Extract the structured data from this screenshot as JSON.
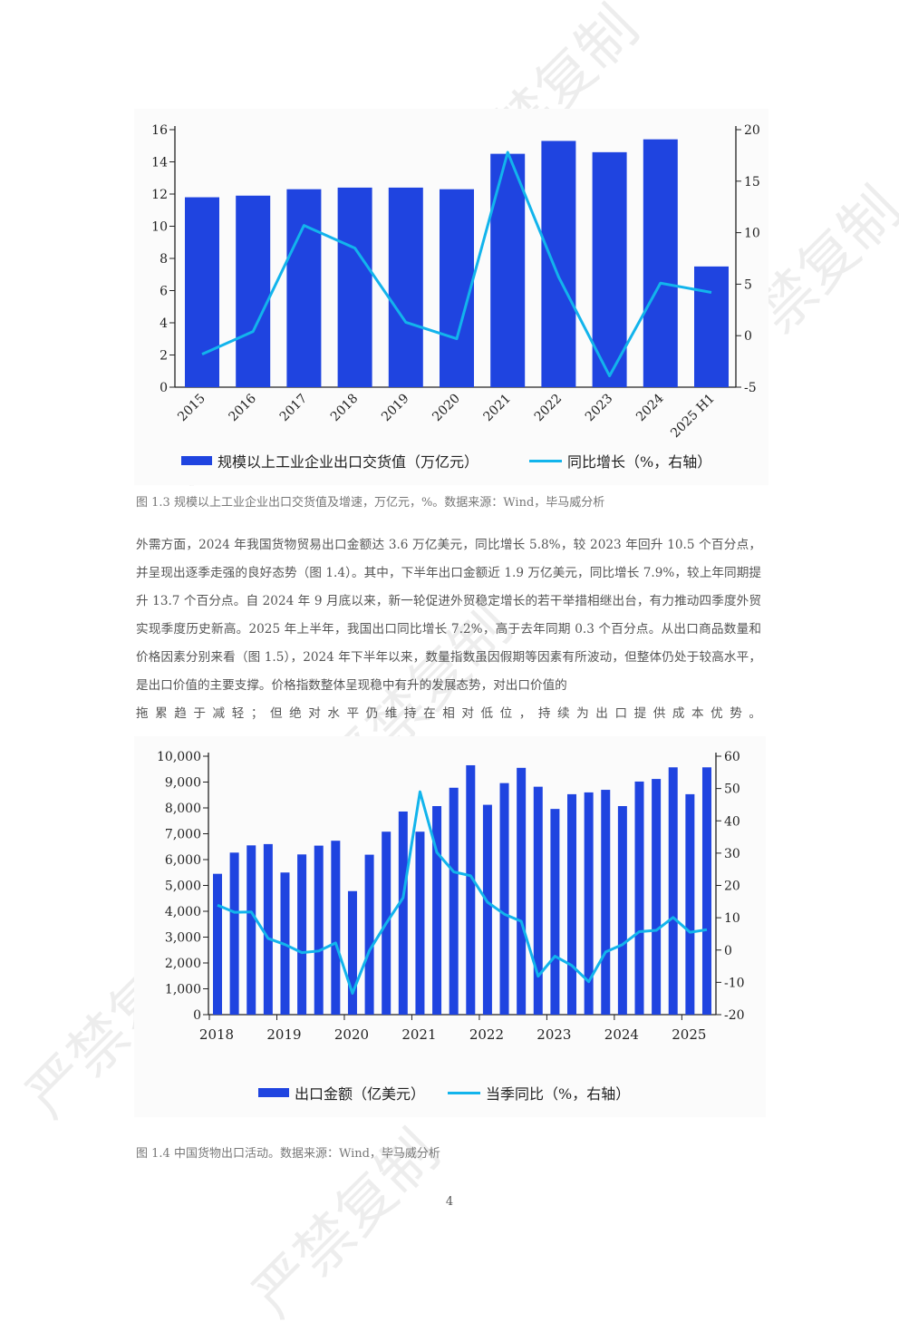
{
  "watermark": "严禁复制",
  "chart_data": [
    {
      "type": "bar+line",
      "categories": [
        "2015",
        "2016",
        "2017",
        "2018",
        "2019",
        "2020",
        "2021",
        "2022",
        "2023",
        "2024",
        "2025 H1"
      ],
      "series": [
        {
          "name": "规模以上工业企业出口交货值（万亿元）",
          "type": "bar",
          "axis": "left",
          "color": "#1f44e0",
          "values": [
            11.8,
            11.9,
            12.3,
            12.4,
            12.4,
            12.3,
            14.5,
            15.3,
            14.6,
            15.4,
            7.5
          ]
        },
        {
          "name": "同比增长（%，右轴）",
          "type": "line",
          "axis": "right",
          "color": "#12b4ec",
          "values": [
            -1.8,
            0.4,
            10.7,
            8.5,
            1.3,
            -0.3,
            17.8,
            5.7,
            -3.9,
            5.1,
            4.2
          ]
        }
      ],
      "ylim_left": [
        0,
        16
      ],
      "yticks_left": [
        0,
        2,
        4,
        6,
        8,
        10,
        12,
        14,
        16
      ],
      "ylim_right": [
        -5,
        20
      ],
      "yticks_right": [
        -5,
        0,
        5,
        10,
        15,
        20
      ],
      "grid": false,
      "legend": "bottom"
    },
    {
      "type": "bar+line",
      "categories": [
        "2018Q1",
        "2018Q2",
        "2018Q3",
        "2018Q4",
        "2019Q1",
        "2019Q2",
        "2019Q3",
        "2019Q4",
        "2020Q1",
        "2020Q2",
        "2020Q3",
        "2020Q4",
        "2021Q1",
        "2021Q2",
        "2021Q3",
        "2021Q4",
        "2022Q1",
        "2022Q2",
        "2022Q3",
        "2022Q4",
        "2023Q1",
        "2023Q2",
        "2023Q3",
        "2023Q4",
        "2024Q1",
        "2024Q2",
        "2024Q3",
        "2024Q4",
        "2025Q1",
        "2025Q2"
      ],
      "xtick_labels": [
        "2018",
        "2019",
        "2020",
        "2021",
        "2022",
        "2023",
        "2024",
        "2025"
      ],
      "series": [
        {
          "name": "出口金额（亿美元）",
          "type": "bar",
          "axis": "left",
          "color": "#1f44e0",
          "values": [
            5450,
            6270,
            6550,
            6600,
            5500,
            6200,
            6540,
            6730,
            4780,
            6190,
            7080,
            7860,
            7080,
            8070,
            8780,
            9650,
            8120,
            8960,
            9550,
            8820,
            7960,
            8530,
            8600,
            8700,
            8070,
            9020,
            9120,
            9570,
            8530,
            9570
          ]
        },
        {
          "name": "当季同比（%，右轴）",
          "type": "line",
          "axis": "right",
          "color": "#12b4ec",
          "values": [
            13.9,
            11.7,
            11.8,
            3.6,
            1.7,
            -0.8,
            -0.3,
            2.2,
            -13.4,
            -0.2,
            8.3,
            16.2,
            49.0,
            30.2,
            24.2,
            23.0,
            14.8,
            11.1,
            8.9,
            -8.1,
            -1.9,
            -4.8,
            -9.8,
            -0.6,
            1.7,
            5.7,
            6.1,
            10.1,
            5.5,
            6.3
          ]
        }
      ],
      "ylim_left": [
        0,
        10000
      ],
      "yticks_left": [
        "0",
        "1,000",
        "2,000",
        "3,000",
        "4,000",
        "5,000",
        "6,000",
        "7,000",
        "8,000",
        "9,000",
        "10,000"
      ],
      "ylim_right": [
        -20,
        60
      ],
      "yticks_right": [
        "-20",
        "-10",
        "0",
        "10",
        "20",
        "30",
        "40",
        "50",
        "60"
      ],
      "grid": false,
      "legend": "bottom"
    }
  ],
  "figure1": {
    "legend_bar": "规模以上工业企业出口交货值（万亿元）",
    "legend_line": "同比增长（%，右轴）",
    "caption": "图 1.3  规模以上工业企业出口交货值及增速，万亿元，%。数据来源：Wind，毕马威分析"
  },
  "body": {
    "paragraph": "外需方面，2024 年我国货物贸易出口金额达 3.6 万亿美元，同比增长 5.8%，较 2023 年回升 10.5 个百分点，并呈现出逐季走强的良好态势（图 1.4）。其中，下半年出口金额近 1.9 万亿美元，同比增长 7.9%，较上年同期提升 13.7 个百分点。自 2024 年 9 月底以来，新一轮促进外贸稳定增长的若干举措相继出台，有力推动四季度外贸实现季度历史新高。2025 年上半年，我国出口同比增长 7.2%，高于去年同期 0.3 个百分点。从出口商品数量和价格因素分别来看（图 1.5），2024 年下半年以来，数量指数虽因假期等因素有所波动，但整体仍处于较高水平，是出口价值的主要支撑。价格指数整体呈现稳中有升的发展态势，对出口价值的",
    "last_line": "拖累趋于减轻；但绝对水平仍维持在相对低位，持续为出口提供成本优势。"
  },
  "figure2": {
    "legend_bar": "出口金额（亿美元）",
    "legend_line": "当季同比（%，右轴）",
    "caption": "图 1.4  中国货物出口活动。数据来源：Wind，毕马威分析"
  },
  "page_number": "4"
}
